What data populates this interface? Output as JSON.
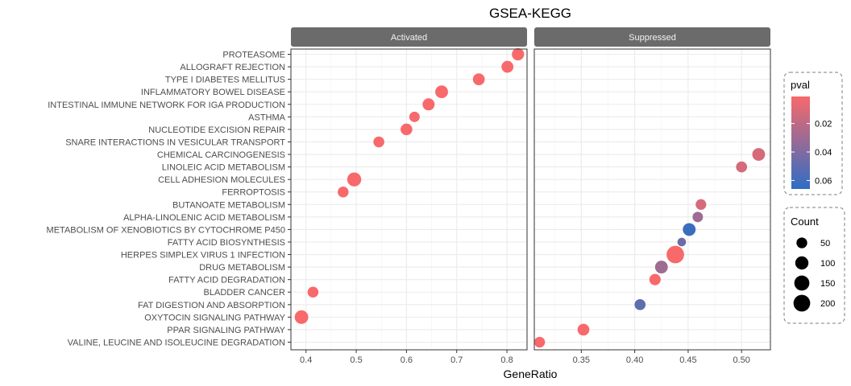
{
  "chart_data": {
    "type": "scatter",
    "title": "GSEA-KEGG",
    "xlabel": "GeneRatio",
    "ylabel": "",
    "categories": [
      "PROTEASOME",
      "ALLOGRAFT REJECTION",
      "TYPE I DIABETES MELLITUS",
      "INFLAMMATORY BOWEL DISEASE",
      "INTESTINAL IMMUNE NETWORK FOR IGA PRODUCTION",
      "ASTHMA",
      "NUCLEOTIDE EXCISION REPAIR",
      "SNARE INTERACTIONS IN VESICULAR TRANSPORT",
      "CHEMICAL CARCINOGENESIS",
      "LINOLEIC ACID METABOLISM",
      "CELL ADHESION MOLECULES",
      "FERROPTOSIS",
      "BUTANOATE METABOLISM",
      "ALPHA-LINOLENIC ACID METABOLISM",
      "METABOLISM OF XENOBIOTICS BY CYTOCHROME P450",
      "FATTY ACID BIOSYNTHESIS",
      "HERPES SIMPLEX VIRUS 1 INFECTION",
      "DRUG METABOLISM",
      "FATTY ACID DEGRADATION",
      "BLADDER CANCER",
      "FAT DIGESTION AND ABSORPTION",
      "OXYTOCIN SIGNALING PATHWAY",
      "PPAR SIGNALING PATHWAY",
      "VALINE, LEUCINE AND ISOLEUCINE DEGRADATION"
    ],
    "panels": [
      {
        "name": "Activated",
        "xlim": [
          0.37,
          0.84
        ],
        "xticks": [
          0.4,
          0.5,
          0.6,
          0.7,
          0.8
        ],
        "xtick_labels": [
          "0.4",
          "0.5",
          "0.6",
          "0.7",
          "0.8"
        ],
        "points": [
          {
            "category": "PROTEASOME",
            "x": 0.822,
            "count": 78,
            "pval": 0.001
          },
          {
            "category": "ALLOGRAFT REJECTION",
            "x": 0.801,
            "count": 72,
            "pval": 0.001
          },
          {
            "category": "TYPE I DIABETES MELLITUS",
            "x": 0.744,
            "count": 70,
            "pval": 0.001
          },
          {
            "category": "INFLAMMATORY BOWEL DISEASE",
            "x": 0.67,
            "count": 90,
            "pval": 0.001
          },
          {
            "category": "INTESTINAL IMMUNE NETWORK FOR IGA PRODUCTION",
            "x": 0.644,
            "count": 75,
            "pval": 0.001
          },
          {
            "category": "ASTHMA",
            "x": 0.616,
            "count": 45,
            "pval": 0.001
          },
          {
            "category": "NUCLEOTIDE EXCISION REPAIR",
            "x": 0.6,
            "count": 68,
            "pval": 0.001
          },
          {
            "category": "SNARE INTERACTIONS IN VESICULAR TRANSPORT",
            "x": 0.545,
            "count": 52,
            "pval": 0.001
          },
          {
            "category": "CELL ADHESION MOLECULES",
            "x": 0.496,
            "count": 120,
            "pval": 0.001
          },
          {
            "category": "FERROPTOSIS",
            "x": 0.474,
            "count": 52,
            "pval": 0.001
          },
          {
            "category": "BLADDER CANCER",
            "x": 0.414,
            "count": 52,
            "pval": 0.001
          },
          {
            "category": "OXYTOCIN SIGNALING PATHWAY",
            "x": 0.391,
            "count": 110,
            "pval": 0.001
          }
        ]
      },
      {
        "name": "Suppressed",
        "xlim": [
          0.306,
          0.527
        ],
        "xticks": [
          0.35,
          0.4,
          0.45,
          0.5
        ],
        "xtick_labels": [
          "0.35",
          "0.40",
          "0.45",
          "0.50"
        ],
        "points": [
          {
            "category": "CHEMICAL CARCINOGENESIS",
            "x": 0.516,
            "count": 90,
            "pval": 0.012
          },
          {
            "category": "LINOLEIC ACID METABOLISM",
            "x": 0.5,
            "count": 55,
            "pval": 0.012
          },
          {
            "category": "BUTANOATE METABOLISM",
            "x": 0.462,
            "count": 48,
            "pval": 0.012
          },
          {
            "category": "ALPHA-LINOLENIC ACID METABOLISM",
            "x": 0.459,
            "count": 45,
            "pval": 0.03
          },
          {
            "category": "METABOLISM OF XENOBIOTICS BY CYTOCHROME P450",
            "x": 0.451,
            "count": 90,
            "pval": 0.062
          },
          {
            "category": "FATTY ACID BIOSYNTHESIS",
            "x": 0.444,
            "count": 20,
            "pval": 0.046
          },
          {
            "category": "HERPES SIMPLEX VIRUS 1 INFECTION",
            "x": 0.438,
            "count": 230,
            "pval": 0.001
          },
          {
            "category": "DRUG METABOLISM",
            "x": 0.425,
            "count": 90,
            "pval": 0.03
          },
          {
            "category": "FATTY ACID DEGRADATION",
            "x": 0.419,
            "count": 60,
            "pval": 0.001
          },
          {
            "category": "FAT DIGESTION AND ABSORPTION",
            "x": 0.405,
            "count": 55,
            "pval": 0.05
          },
          {
            "category": "PPAR SIGNALING PATHWAY",
            "x": 0.352,
            "count": 70,
            "pval": 0.001
          },
          {
            "category": "VALINE, LEUCINE AND ISOLEUCINE DEGRADATION",
            "x": 0.311,
            "count": 50,
            "pval": 0.001
          }
        ]
      }
    ],
    "color_legend": {
      "title": "pval",
      "range": [
        0.001,
        0.066
      ],
      "ticks": [
        0.02,
        0.04,
        0.06
      ],
      "tick_labels": [
        "0.02",
        "0.04",
        "0.06"
      ],
      "low_color": "#f8696b",
      "high_color": "#2f6dc4"
    },
    "size_legend": {
      "title": "Count",
      "values": [
        50,
        100,
        150,
        200
      ],
      "labels": [
        "50",
        "100",
        "150",
        "200"
      ]
    },
    "colors": {
      "strip_background": "#6b6b6b",
      "grid": "#ebebeb",
      "panel_border": "#333333"
    }
  }
}
